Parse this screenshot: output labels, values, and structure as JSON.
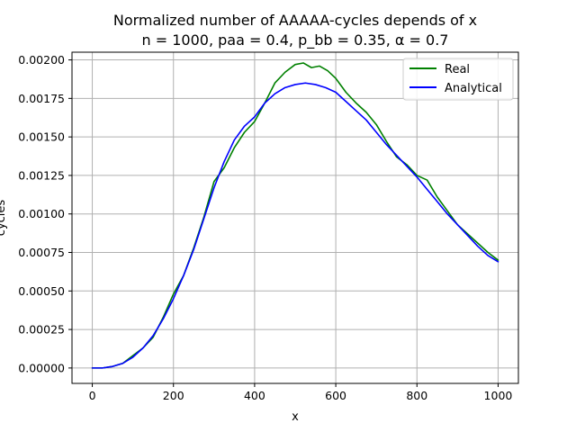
{
  "chart_data": {
    "type": "line",
    "title_line1": "Normalized number of AAAAA-cycles depends of x",
    "title_line2": "n = 1000, paa = 0.4, p_bb = 0.35, α = 0.7",
    "xlabel": "x",
    "ylabel": "cycles",
    "xlim": [
      -50,
      1050
    ],
    "ylim": [
      -0.0001,
      0.00205
    ],
    "x_ticks": [
      0,
      200,
      400,
      600,
      800,
      1000
    ],
    "x_tick_labels": [
      "0",
      "200",
      "400",
      "600",
      "800",
      "1000"
    ],
    "y_ticks": [
      0,
      0.00025,
      0.0005,
      0.00075,
      0.001,
      0.00125,
      0.0015,
      0.00175,
      0.002
    ],
    "y_tick_labels": [
      "0.00000",
      "0.00025",
      "0.00050",
      "0.00075",
      "0.00100",
      "0.00125",
      "0.00150",
      "0.00175",
      "0.00200"
    ],
    "grid": true,
    "legend_position": "top-right",
    "series": [
      {
        "name": "Real",
        "color": "#008000",
        "x": [
          0,
          25,
          50,
          75,
          100,
          125,
          150,
          175,
          200,
          225,
          250,
          275,
          300,
          325,
          350,
          375,
          400,
          425,
          450,
          475,
          500,
          520,
          540,
          560,
          580,
          600,
          625,
          650,
          675,
          700,
          725,
          750,
          775,
          800,
          825,
          850,
          875,
          900,
          925,
          950,
          975,
          1000
        ],
        "y": [
          0,
          0,
          1e-05,
          3e-05,
          8e-05,
          0.00013,
          0.0002,
          0.00033,
          0.00048,
          0.0006,
          0.00078,
          0.00098,
          0.00121,
          0.0013,
          0.00143,
          0.00153,
          0.0016,
          0.00172,
          0.00185,
          0.00192,
          0.00197,
          0.00198,
          0.00195,
          0.00196,
          0.00193,
          0.00188,
          0.00179,
          0.00172,
          0.00166,
          0.00158,
          0.00147,
          0.00137,
          0.00132,
          0.00125,
          0.00122,
          0.00111,
          0.00102,
          0.00093,
          0.00087,
          0.00081,
          0.00075,
          0.0007
        ]
      },
      {
        "name": "Analytical",
        "color": "#0000ff",
        "x": [
          0,
          25,
          50,
          75,
          100,
          125,
          150,
          175,
          200,
          225,
          250,
          275,
          300,
          325,
          350,
          375,
          400,
          425,
          450,
          475,
          500,
          525,
          550,
          575,
          600,
          625,
          650,
          675,
          700,
          725,
          750,
          775,
          800,
          825,
          850,
          875,
          900,
          925,
          950,
          975,
          1000
        ],
        "y": [
          0,
          0,
          1e-05,
          3e-05,
          7e-05,
          0.00013,
          0.00021,
          0.00032,
          0.00045,
          0.0006,
          0.00077,
          0.00097,
          0.00117,
          0.00134,
          0.00148,
          0.00157,
          0.00163,
          0.00172,
          0.00178,
          0.00182,
          0.00184,
          0.00185,
          0.00184,
          0.00182,
          0.00179,
          0.00173,
          0.00167,
          0.00161,
          0.00153,
          0.00145,
          0.00138,
          0.00131,
          0.00124,
          0.00116,
          0.00108,
          0.001,
          0.00093,
          0.00086,
          0.00079,
          0.00073,
          0.00069
        ]
      }
    ]
  }
}
